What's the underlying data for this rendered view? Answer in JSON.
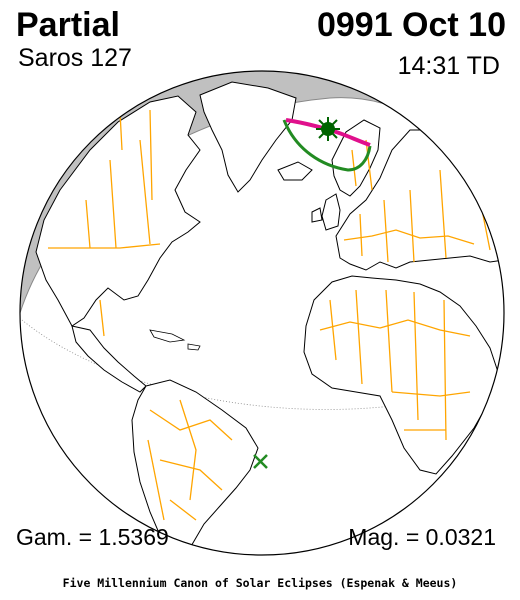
{
  "eclipse": {
    "type": "Partial",
    "date": "0991 Oct 10",
    "saros": "Saros 127",
    "time": "14:31 TD",
    "gamma": "Gam. = 1.5369",
    "magnitude": "Mag. = 0.0321"
  },
  "credit": "Five Millennium Canon of Solar Eclipses (Espenak & Meeus)",
  "colors": {
    "ocean": "#ffffff",
    "night": "#c0c0c0",
    "coast": "#000000",
    "borders": "#ffa500",
    "eclipse_limits": "#228b22",
    "rise_set_curve": "#e0108c",
    "greatest_eclipse_marker": "#006400",
    "opposite_point_marker": "#228b22"
  },
  "markers": {
    "greatest_eclipse": "filled-circle-with-rays",
    "opposite_point": "x-cross"
  }
}
